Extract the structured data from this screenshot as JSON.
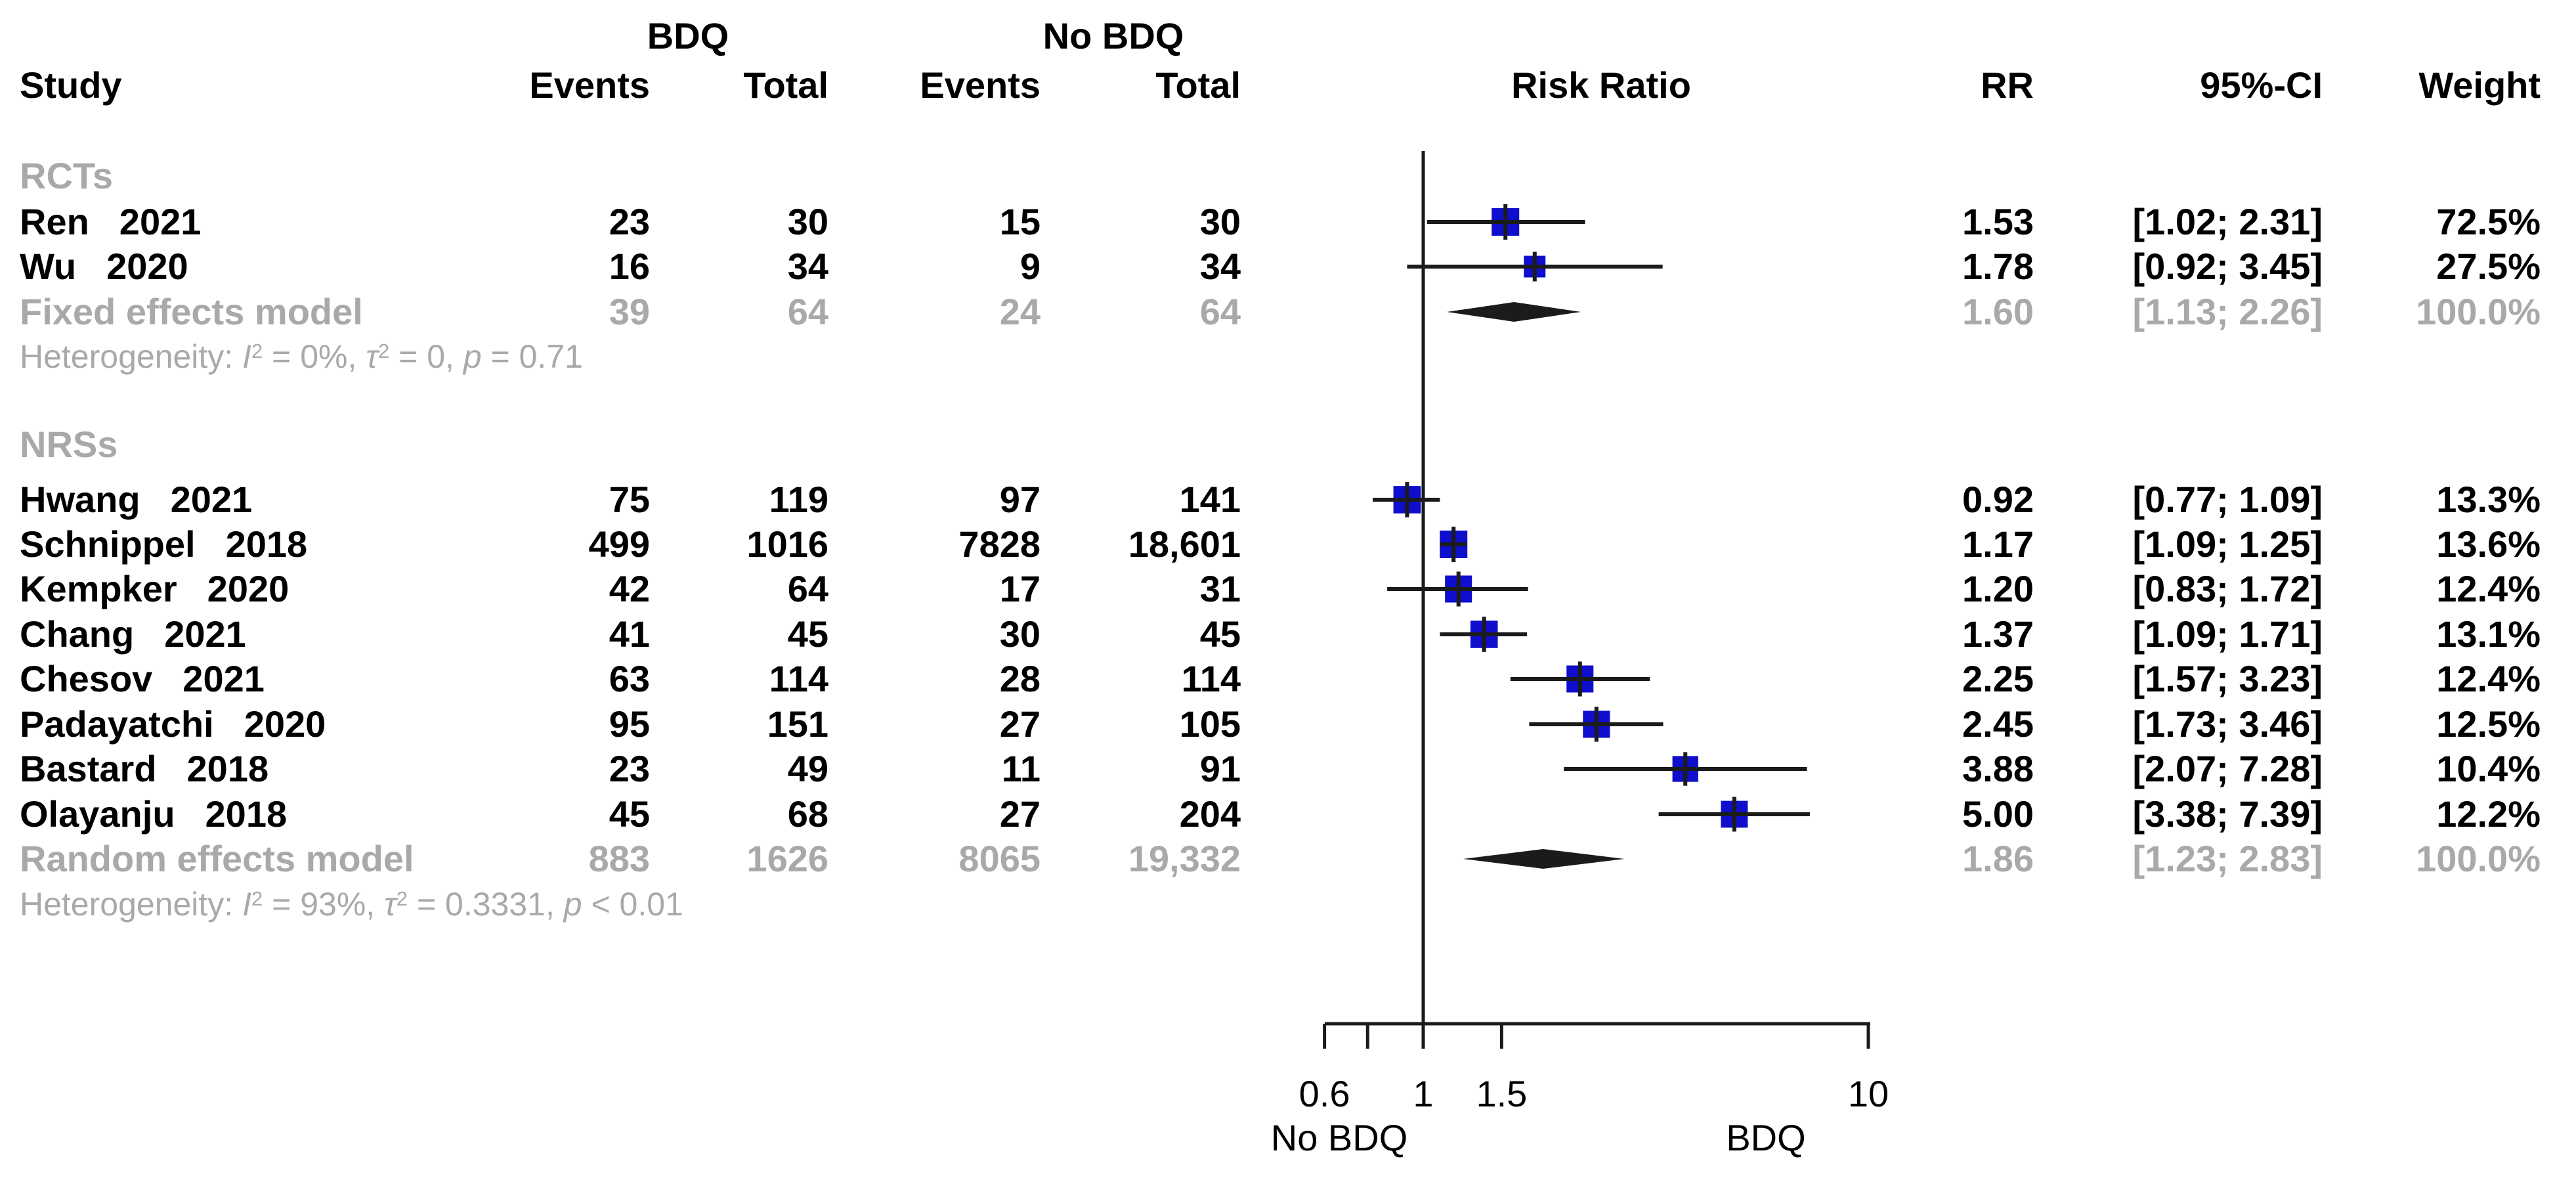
{
  "colors": {
    "square_blue": "#0e0ecc",
    "summary_gray": "#a9a9a9",
    "line_black": "#1b1b1b",
    "text_black": "#000000",
    "background": "#ffffff"
  },
  "header": {
    "study": "Study",
    "group_bdq": "BDQ",
    "group_no_bdq": "No BDQ",
    "events": "Events",
    "total": "Total",
    "risk_ratio": "Risk Ratio",
    "rr": "RR",
    "ci": "95%-CI",
    "weight": "Weight"
  },
  "axis": {
    "scale": "log",
    "null_line": 1,
    "left_label": "No BDQ",
    "right_label": "BDQ",
    "ticks": [
      {
        "value": 0.6,
        "label": "0.6"
      },
      {
        "value": 0.75,
        "label": ""
      },
      {
        "value": 1,
        "label": "1"
      },
      {
        "value": 1.5,
        "label": "1.5"
      },
      {
        "value": 10,
        "label": "10"
      }
    ]
  },
  "chart_data": {
    "type": "forest",
    "x_scale": "log",
    "xlim": [
      0.6,
      10
    ],
    "x_ticks": [
      0.6,
      1,
      1.5,
      10
    ],
    "null_line": 1,
    "groups": [
      {
        "label": "RCTs",
        "studies": [
          {
            "name": "Ren",
            "year": "2021",
            "events_bdq": "23",
            "total_bdq": "30",
            "events_nobdq": "15",
            "total_nobdq": "30",
            "rr": 1.53,
            "ci_low": 1.02,
            "ci_high": 2.31,
            "rr_text": "1.53",
            "ci_text": "[1.02; 2.31]",
            "weight": 72.5,
            "weight_text": "72.5%"
          },
          {
            "name": "Wu",
            "year": "2020",
            "events_bdq": "16",
            "total_bdq": "34",
            "events_nobdq": "9",
            "total_nobdq": "34",
            "rr": 1.78,
            "ci_low": 0.92,
            "ci_high": 3.45,
            "rr_text": "1.78",
            "ci_text": "[0.92; 3.45]",
            "weight": 27.5,
            "weight_text": "27.5%"
          }
        ],
        "pooled": {
          "label": "Fixed effects model",
          "events_bdq": "39",
          "total_bdq": "64",
          "events_nobdq": "24",
          "total_nobdq": "64",
          "rr": 1.6,
          "ci_low": 1.13,
          "ci_high": 2.26,
          "rr_text": "1.60",
          "ci_text": "[1.13; 2.26]",
          "weight_text": "100.0%"
        },
        "heterogeneity": [
          {
            "t": "Heterogeneity: "
          },
          {
            "t": "I",
            "i": true
          },
          {
            "t": "2",
            "sup": true
          },
          {
            "t": " = 0%, "
          },
          {
            "t": "τ",
            "i": true
          },
          {
            "t": "2",
            "sup": true
          },
          {
            "t": " = 0, "
          },
          {
            "t": "p",
            "i": true
          },
          {
            "t": " = 0.71"
          }
        ]
      },
      {
        "label": "NRSs",
        "studies": [
          {
            "name": "Hwang",
            "year": "2021",
            "events_bdq": "75",
            "total_bdq": "119",
            "events_nobdq": "97",
            "total_nobdq": "141",
            "rr": 0.92,
            "ci_low": 0.77,
            "ci_high": 1.09,
            "rr_text": "0.92",
            "ci_text": "[0.77; 1.09]",
            "weight": 13.3,
            "weight_text": "13.3%"
          },
          {
            "name": "Schnippel",
            "year": "2018",
            "events_bdq": "499",
            "total_bdq": "1016",
            "events_nobdq": "7828",
            "total_nobdq": "18,601",
            "rr": 1.17,
            "ci_low": 1.09,
            "ci_high": 1.25,
            "rr_text": "1.17",
            "ci_text": "[1.09; 1.25]",
            "weight": 13.6,
            "weight_text": "13.6%"
          },
          {
            "name": "Kempker",
            "year": "2020",
            "events_bdq": "42",
            "total_bdq": "64",
            "events_nobdq": "17",
            "total_nobdq": "31",
            "rr": 1.2,
            "ci_low": 0.83,
            "ci_high": 1.72,
            "rr_text": "1.20",
            "ci_text": "[0.83; 1.72]",
            "weight": 12.4,
            "weight_text": "12.4%"
          },
          {
            "name": "Chang",
            "year": "2021",
            "events_bdq": "41",
            "total_bdq": "45",
            "events_nobdq": "30",
            "total_nobdq": "45",
            "rr": 1.37,
            "ci_low": 1.09,
            "ci_high": 1.71,
            "rr_text": "1.37",
            "ci_text": "[1.09; 1.71]",
            "weight": 13.1,
            "weight_text": "13.1%"
          },
          {
            "name": "Chesov",
            "year": "2021",
            "events_bdq": "63",
            "total_bdq": "114",
            "events_nobdq": "28",
            "total_nobdq": "114",
            "rr": 2.25,
            "ci_low": 1.57,
            "ci_high": 3.23,
            "rr_text": "2.25",
            "ci_text": "[1.57; 3.23]",
            "weight": 12.4,
            "weight_text": "12.4%"
          },
          {
            "name": "Padayatchi",
            "year": "2020",
            "events_bdq": "95",
            "total_bdq": "151",
            "events_nobdq": "27",
            "total_nobdq": "105",
            "rr": 2.45,
            "ci_low": 1.73,
            "ci_high": 3.46,
            "rr_text": "2.45",
            "ci_text": "[1.73; 3.46]",
            "weight": 12.5,
            "weight_text": "12.5%"
          },
          {
            "name": "Bastard",
            "year": "2018",
            "events_bdq": "23",
            "total_bdq": "49",
            "events_nobdq": "11",
            "total_nobdq": "91",
            "rr": 3.88,
            "ci_low": 2.07,
            "ci_high": 7.28,
            "rr_text": "3.88",
            "ci_text": "[2.07; 7.28]",
            "weight": 10.4,
            "weight_text": "10.4%"
          },
          {
            "name": "Olayanju",
            "year": "2018",
            "events_bdq": "45",
            "total_bdq": "68",
            "events_nobdq": "27",
            "total_nobdq": "204",
            "rr": 5,
            "ci_low": 3.38,
            "ci_high": 7.39,
            "rr_text": "5.00",
            "ci_text": "[3.38; 7.39]",
            "weight": 12.2,
            "weight_text": "12.2%"
          }
        ],
        "pooled": {
          "label": "Random effects model",
          "events_bdq": "883",
          "total_bdq": "1626",
          "events_nobdq": "8065",
          "total_nobdq": "19,332",
          "rr": 1.86,
          "ci_low": 1.23,
          "ci_high": 2.83,
          "rr_text": "1.86",
          "ci_text": "[1.23; 2.83]",
          "weight_text": "100.0%"
        },
        "heterogeneity": [
          {
            "t": "Heterogeneity: "
          },
          {
            "t": "I",
            "i": true
          },
          {
            "t": "2",
            "sup": true
          },
          {
            "t": " = 93%, "
          },
          {
            "t": "τ",
            "i": true
          },
          {
            "t": "2",
            "sup": true
          },
          {
            "t": " = 0.3331, "
          },
          {
            "t": "p",
            "i": true
          },
          {
            "t": " < 0.01"
          }
        ]
      }
    ]
  }
}
